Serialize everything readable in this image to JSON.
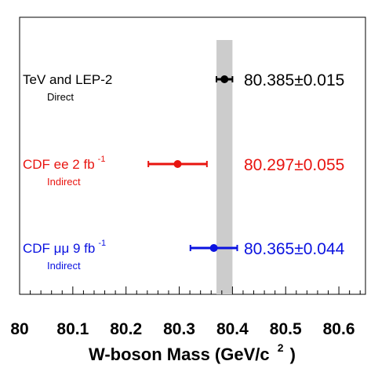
{
  "chart_data": {
    "type": "scatter",
    "xlabel": "W-boson Mass (GeV/c",
    "xlabel_sup": "2",
    "xlabel_close": ")",
    "xlim": [
      80.0,
      80.65
    ],
    "x_ticks": [
      "80",
      "80.1",
      "80.2",
      "80.3",
      "80.4",
      "80.5",
      "80.6"
    ],
    "x_tick_values": [
      80.0,
      80.1,
      80.2,
      80.3,
      80.4,
      80.5,
      80.6
    ],
    "band": {
      "center": 80.385,
      "half_width": 0.015,
      "color": "#cccccc"
    },
    "grid": false,
    "legend": "none",
    "measurements": [
      {
        "label": "TeV and LEP-2",
        "label_sup": "",
        "sublabel": "Direct",
        "value": 80.385,
        "error": 0.015,
        "value_text": "80.385±0.015",
        "color": "#000000"
      },
      {
        "label": "CDF ee 2 fb",
        "label_sup": "-1",
        "sublabel": "Indirect",
        "value": 80.297,
        "error": 0.055,
        "value_text": "80.297±0.055",
        "color": "#e8140f"
      },
      {
        "label": "CDF μμ 9 fb",
        "label_sup": "-1",
        "sublabel": "Indirect",
        "value": 80.365,
        "error": 0.044,
        "value_text": "80.365±0.044",
        "color": "#0a12e0"
      }
    ]
  }
}
